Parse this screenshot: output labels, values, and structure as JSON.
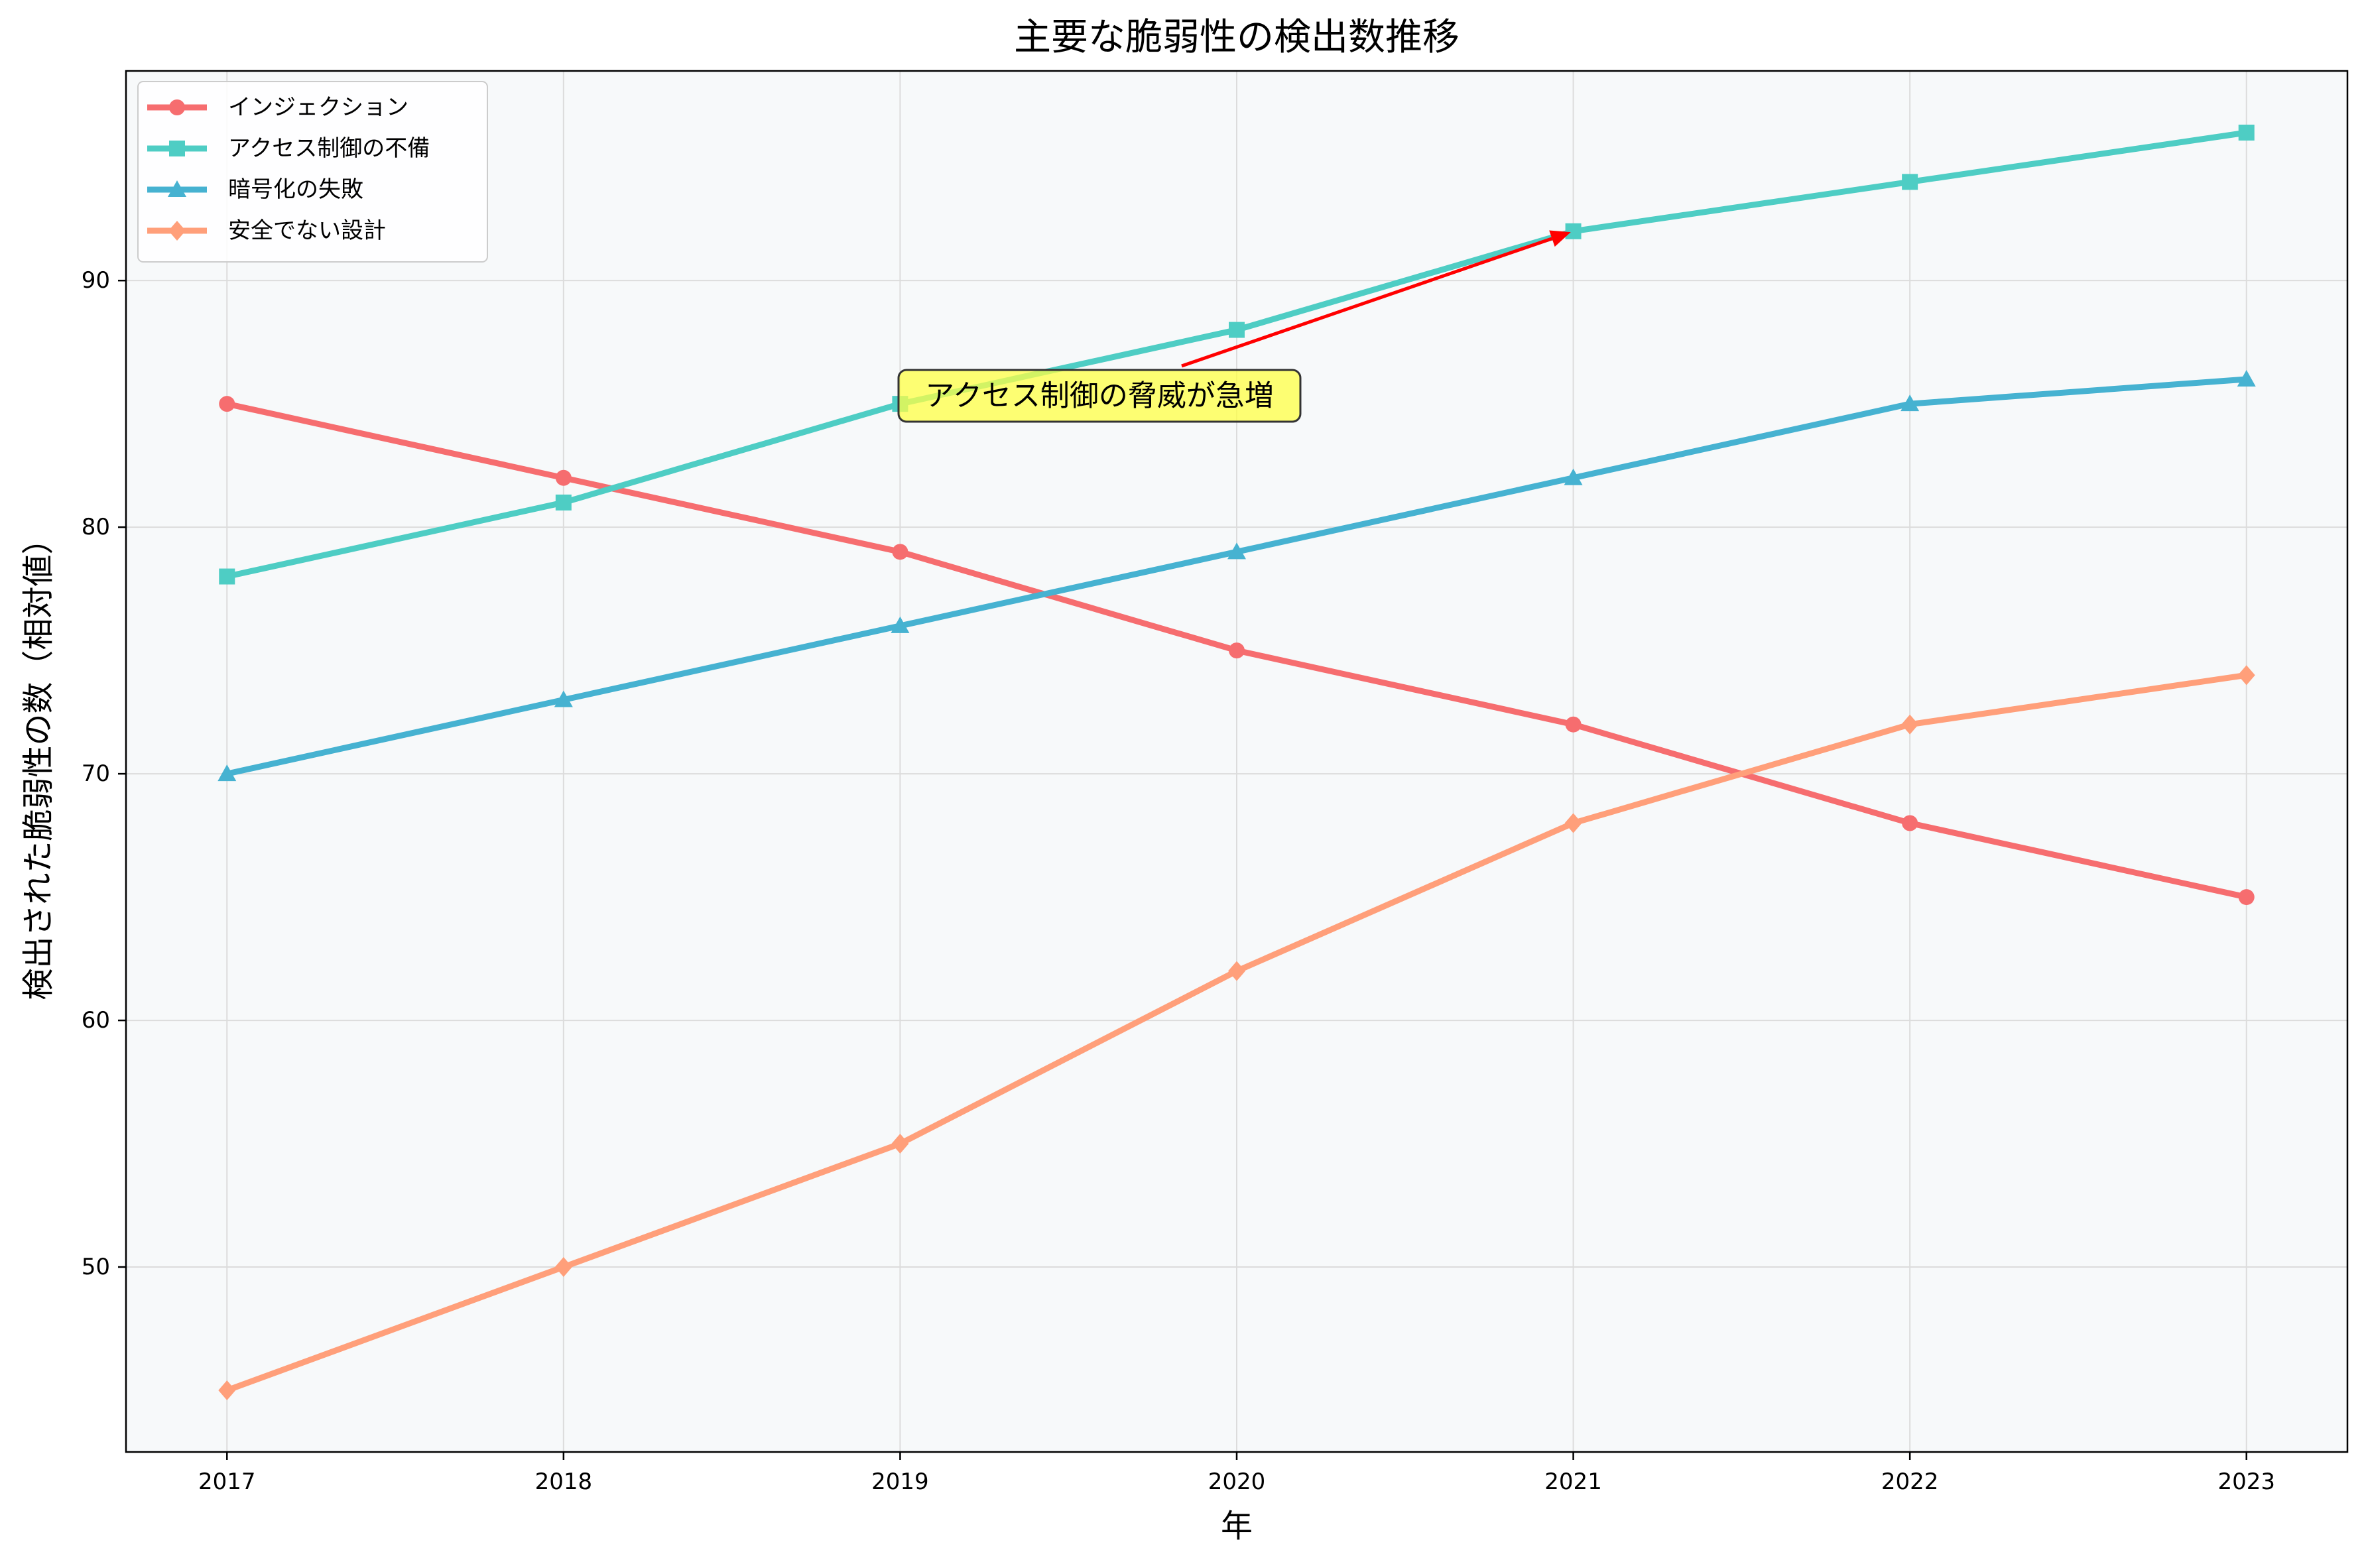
{
  "chart_data": {
    "type": "line",
    "title": "主要な脆弱性の検出数推移",
    "xlabel": "年",
    "ylabel": "検出された脆弱性の数（相対値）",
    "x": [
      2017,
      2018,
      2019,
      2020,
      2021,
      2022,
      2023
    ],
    "x_tick_labels": [
      "2017",
      "2018",
      "2019",
      "2020",
      "2021",
      "2022",
      "2023"
    ],
    "xlim": [
      2016.7,
      2023.3
    ],
    "ylim": [
      42.5,
      98.5
    ],
    "y_ticks": [
      50,
      60,
      70,
      80,
      90
    ],
    "y_tick_labels": [
      "50",
      "60",
      "70",
      "80",
      "90"
    ],
    "grid": true,
    "legend_position": "top-left",
    "background": "#f7f9fa",
    "series": [
      {
        "name": "インジェクション",
        "values": [
          85,
          82,
          79,
          75,
          72,
          68,
          65
        ],
        "color": "#f66d6f",
        "marker": "circle"
      },
      {
        "name": "アクセス制御の不備",
        "values": [
          78,
          81,
          85,
          88,
          92,
          94,
          96
        ],
        "color": "#4ecdc4",
        "marker": "square"
      },
      {
        "name": "暗号化の失敗",
        "values": [
          70,
          73,
          76,
          79,
          82,
          85,
          86
        ],
        "color": "#46b2d1",
        "marker": "triangle"
      },
      {
        "name": "安全でない設計",
        "values": [
          45,
          50,
          55,
          62,
          68,
          72,
          74
        ],
        "color": "#ff9f7a",
        "marker": "diamond"
      }
    ],
    "annotation": {
      "text": "アクセス制御の脅威が急増",
      "target": {
        "x": 2021,
        "y": 92
      },
      "arrow_color": "#ff0000",
      "box_color": "#ffff44"
    }
  }
}
